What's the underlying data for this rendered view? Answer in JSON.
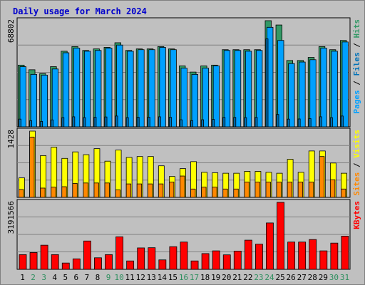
{
  "chart_data": {
    "type": "bar",
    "title": "Daily usage for March 2024",
    "categories": [
      "1",
      "2",
      "3",
      "4",
      "5",
      "6",
      "7",
      "8",
      "9",
      "10",
      "11",
      "12",
      "13",
      "14",
      "15",
      "16",
      "17",
      "18",
      "19",
      "20",
      "21",
      "22",
      "23",
      "24",
      "25",
      "26",
      "27",
      "28",
      "29",
      "30",
      "31"
    ],
    "weekend_days": [
      "2",
      "3",
      "9",
      "10",
      "16",
      "17",
      "23",
      "24",
      "30",
      "31"
    ],
    "colors": {
      "hits": "#339966",
      "files": "#00a0ff",
      "pages": "#0072b8",
      "visits": "#ffff00",
      "sites": "#ff8800",
      "kbytes": "#ff0000",
      "weekday_label": "#000000",
      "weekend_label": "#2f8f5f",
      "title": "#0000cc"
    },
    "panels": [
      {
        "name": "pages-files-hits",
        "ymax_label": "68802",
        "ylim": [
          0,
          68802
        ],
        "legend": [
          {
            "text": "Pages",
            "color": "#00a0ff"
          },
          {
            "text": " / ",
            "color": "#000000"
          },
          {
            "text": "Files",
            "color": "#0072b8"
          },
          {
            "text": " / ",
            "color": "#000000"
          },
          {
            "text": "Hits",
            "color": "#339966"
          }
        ],
        "series": [
          {
            "name": "Hits",
            "color": "#339966",
            "values": [
              40000,
              37000,
              34500,
              39000,
              49000,
              52000,
              49500,
              50500,
              51500,
              54500,
              49500,
              50500,
              50500,
              52000,
              50500,
              39500,
              35500,
              39500,
              40000,
              50000,
              50000,
              50000,
              50000,
              68802,
              66000,
              43000,
              43000,
              45000,
              52000,
              50000,
              56000
            ]
          },
          {
            "name": "Files",
            "color": "#00a0ff",
            "values": [
              39000,
              34000,
              33500,
              37500,
              48000,
              51000,
              49000,
              49500,
              51000,
              53000,
              49000,
              50000,
              50000,
              51500,
              50000,
              38000,
              34000,
              38000,
              39500,
              49500,
              49500,
              49000,
              49500,
              64500,
              56000,
              41000,
              42000,
              43500,
              51000,
              49000,
              55000
            ]
          },
          {
            "name": "Pages",
            "color": "#0072b8",
            "values": [
              5000,
              4000,
              3500,
              4500,
              6000,
              6500,
              6000,
              6200,
              6400,
              7000,
              6000,
              6200,
              6200,
              6500,
              6200,
              4600,
              4000,
              4600,
              4800,
              6100,
              6100,
              6000,
              6100,
              57000,
              8000,
              5000,
              5100,
              5300,
              6500,
              6000,
              7000
            ]
          }
        ]
      },
      {
        "name": "visits-sites",
        "ymax_label": "1428",
        "ylim": [
          0,
          1428
        ],
        "legend": [
          {
            "text": "Sites",
            "color": "#ff8800"
          },
          {
            "text": " / ",
            "color": "#000000"
          },
          {
            "text": "Visits",
            "color": "#ffff00"
          }
        ],
        "series": [
          {
            "name": "Visits",
            "color": "#ffff00",
            "values": [
              420,
              1428,
              900,
              1080,
              840,
              980,
              920,
              1050,
              780,
              1020,
              860,
              880,
              880,
              680,
              450,
              620,
              770,
              540,
              530,
              520,
              520,
              560,
              560,
              540,
              520,
              820,
              540,
              1000,
              1000,
              740,
              520
            ]
          },
          {
            "name": "Sites",
            "color": "#ff8800",
            "values": [
              170,
              1300,
              200,
              220,
              230,
              300,
              310,
              310,
              310,
              160,
              290,
              290,
              290,
              290,
              330,
              460,
              180,
              220,
              220,
              180,
              180,
              330,
              330,
              330,
              330,
              330,
              330,
              330,
              880,
              380,
              180
            ]
          }
        ]
      },
      {
        "name": "kbytes",
        "ymax_label": "3191566",
        "ylim": [
          0,
          3191566
        ],
        "legend": [
          {
            "text": "KBytes",
            "color": "#ff0000"
          }
        ],
        "series": [
          {
            "name": "KBytes",
            "color": "#ff0000",
            "values": [
              700000,
              800000,
              1150000,
              700000,
              300000,
              500000,
              1350000,
              550000,
              700000,
              1550000,
              400000,
              1020000,
              1030000,
              450000,
              1080000,
              1300000,
              400000,
              750000,
              880000,
              690000,
              870000,
              1390000,
              1200000,
              2210000,
              3191566,
              1300000,
              1300000,
              1420000,
              880000,
              1250000,
              1580000
            ]
          }
        ]
      }
    ]
  }
}
